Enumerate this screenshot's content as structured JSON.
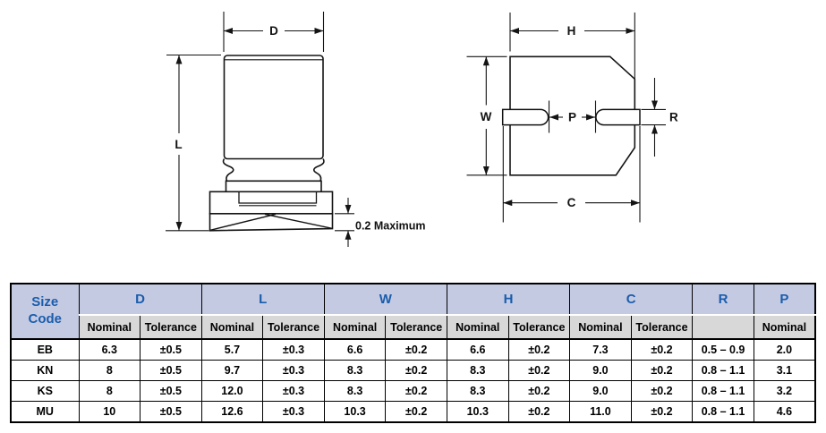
{
  "diagrams": {
    "side_view": {
      "labels": {
        "d": "D",
        "l": "L",
        "seating_note": "0.2 Maximum"
      }
    },
    "bottom_view": {
      "labels": {
        "h": "H",
        "w": "W",
        "p": "P",
        "r": "R",
        "c": "C"
      }
    }
  },
  "table": {
    "corner": [
      "Size",
      "Code"
    ],
    "columns": [
      {
        "label": "D",
        "subs": [
          "Nominal",
          "Tolerance"
        ]
      },
      {
        "label": "L",
        "subs": [
          "Nominal",
          "Tolerance"
        ]
      },
      {
        "label": "W",
        "subs": [
          "Nominal",
          "Tolerance"
        ]
      },
      {
        "label": "H",
        "subs": [
          "Nominal",
          "Tolerance"
        ]
      },
      {
        "label": "C",
        "subs": [
          "Nominal",
          "Tolerance"
        ]
      },
      {
        "label": "R",
        "subs": [
          ""
        ]
      },
      {
        "label": "P",
        "subs": [
          "Nominal"
        ]
      }
    ],
    "rows": [
      {
        "code": "EB",
        "values": [
          "6.3",
          "±0.5",
          "5.7",
          "±0.3",
          "6.6",
          "±0.2",
          "6.6",
          "±0.2",
          "7.3",
          "±0.2",
          "0.5 – 0.9",
          "2.0"
        ]
      },
      {
        "code": "KN",
        "values": [
          "8",
          "±0.5",
          "9.7",
          "±0.3",
          "8.3",
          "±0.2",
          "8.3",
          "±0.2",
          "9.0",
          "±0.2",
          "0.8 – 1.1",
          "3.1"
        ]
      },
      {
        "code": "KS",
        "values": [
          "8",
          "±0.5",
          "12.0",
          "±0.3",
          "8.3",
          "±0.2",
          "8.3",
          "±0.2",
          "9.0",
          "±0.2",
          "0.8 – 1.1",
          "3.2"
        ]
      },
      {
        "code": "MU",
        "values": [
          "10",
          "±0.5",
          "12.6",
          "±0.3",
          "10.3",
          "±0.2",
          "10.3",
          "±0.2",
          "11.0",
          "±0.2",
          "0.8 – 1.1",
          "4.6"
        ]
      }
    ]
  },
  "colors": {
    "header_bg": "#c5cae3",
    "header_text": "#1a5dac",
    "subheader_bg": "#d8d8d8",
    "line": "#141414",
    "table_border": "#000000"
  }
}
